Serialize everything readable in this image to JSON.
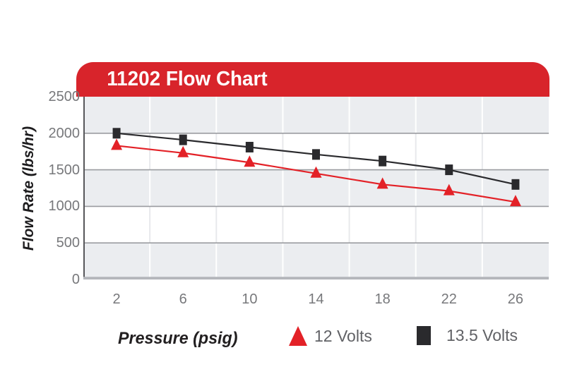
{
  "chart_data": {
    "type": "line",
    "title": "11202 Flow Chart",
    "xlabel": "Pressure (psig)",
    "ylabel": "Flow Rate (lbs/hr)",
    "categories": [
      "2",
      "6",
      "10",
      "14",
      "18",
      "22",
      "26"
    ],
    "series": [
      {
        "name": "12 Volts",
        "marker": "triangle",
        "color": "#e32127",
        "values": [
          1830,
          1730,
          1600,
          1450,
          1300,
          1210,
          1060
        ]
      },
      {
        "name": "13.5 Volts",
        "marker": "square",
        "color": "#2a2a2d",
        "values": [
          2000,
          1910,
          1810,
          1710,
          1620,
          1500,
          1300
        ]
      }
    ],
    "ylim": [
      0,
      2500
    ],
    "yticks": [
      0,
      500,
      1000,
      1500,
      2000,
      2500
    ],
    "grid": "horizontal-lines + vertical-column-separators",
    "banded_background": true,
    "legend_position": "bottom"
  },
  "colors": {
    "banner_red": "#d8242b",
    "title_text": "#ffffff",
    "series_red": "#e32127",
    "series_black": "#2a2a2d",
    "band_fill": "#ebedf0",
    "vline_on_band": "#ffffff",
    "vline_on_white": "#e8e9ec",
    "hgrid_line": "#9a9ca0",
    "y_axis_line": "#57575a",
    "x_axis_line": "#b4b6bb",
    "tick_text": "#77787b",
    "legend_text": "#616266",
    "axis_title_text": "#221f20"
  }
}
